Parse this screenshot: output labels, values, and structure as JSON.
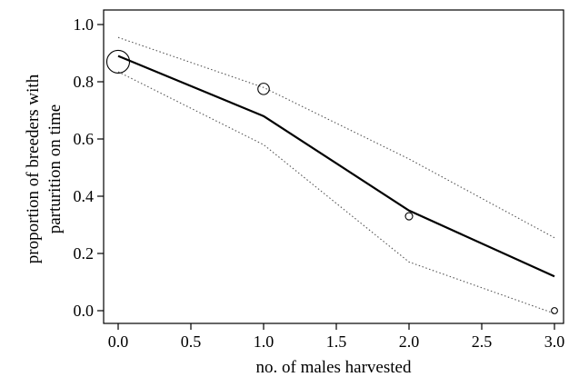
{
  "chart_data": {
    "type": "line",
    "title": "",
    "xlabel": "no. of males harvested",
    "ylabel_lines": [
      "proportion of breeders with",
      "parturition on time"
    ],
    "xlim": [
      -0.1,
      3.1
    ],
    "ylim": [
      -0.03,
      1.05
    ],
    "x_ticks": [
      0.0,
      0.5,
      1.0,
      1.5,
      2.0,
      2.5,
      3.0
    ],
    "x_tick_labels": [
      "0.0",
      "0.5",
      "1.0",
      "1.5",
      "2.0",
      "2.5",
      "3.0"
    ],
    "y_ticks": [
      0.0,
      0.2,
      0.4,
      0.6,
      0.8,
      1.0
    ],
    "y_tick_labels": [
      "0.0",
      "0.2",
      "0.4",
      "0.6",
      "0.8",
      "1.0"
    ],
    "grid": false,
    "series": [
      {
        "style": "solid",
        "color": "#000000",
        "x": [
          0,
          1,
          2,
          3
        ],
        "y": [
          0.89,
          0.68,
          0.35,
          0.12
        ]
      },
      {
        "style": "dotted",
        "color": "#555555",
        "x": [
          0,
          1,
          2,
          3
        ],
        "y": [
          0.955,
          0.78,
          0.53,
          0.255
        ]
      },
      {
        "style": "dotted",
        "color": "#555555",
        "x": [
          0,
          1,
          2,
          3
        ],
        "y": [
          0.835,
          0.58,
          0.17,
          -0.01
        ]
      }
    ],
    "points": {
      "style": "open-circle",
      "x": [
        0,
        1,
        2,
        3
      ],
      "y": [
        0.87,
        0.775,
        0.33,
        0.0
      ],
      "relative_size": [
        1.0,
        0.5,
        0.32,
        0.27
      ]
    }
  }
}
